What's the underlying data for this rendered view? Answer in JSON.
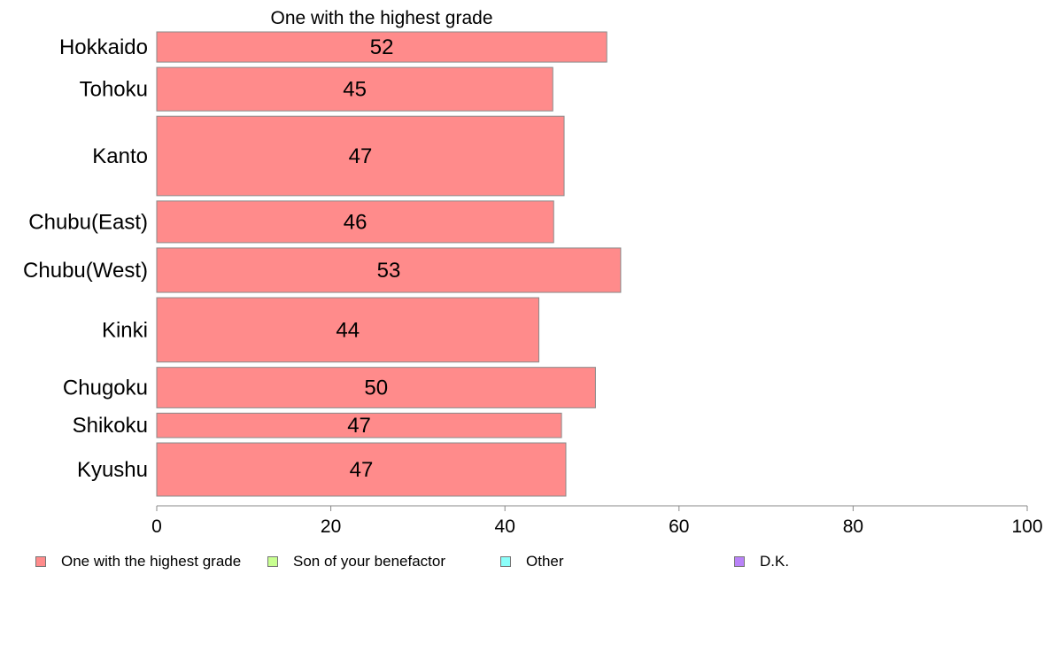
{
  "chart_data": {
    "type": "bar",
    "orientation": "horizontal",
    "title": "One with the highest grade",
    "categories": [
      "Hokkaido",
      "Tohoku",
      "Kanto",
      "Chubu(East)",
      "Chubu(West)",
      "Kinki",
      "Chugoku",
      "Shikoku",
      "Kyushu"
    ],
    "values": [
      51.7,
      45.5,
      46.8,
      45.6,
      53.3,
      43.9,
      50.4,
      46.5,
      47.0
    ],
    "data_labels": [
      "52",
      "45",
      "47",
      "46",
      "53",
      "44",
      "50",
      "47",
      "47"
    ],
    "bar_weights": [
      1.0,
      1.44,
      2.63,
      1.38,
      1.47,
      2.13,
      1.34,
      0.81,
      1.76
    ],
    "xlim": [
      0,
      100
    ],
    "xticks": [
      "0",
      "20",
      "40",
      "60",
      "80",
      "100"
    ],
    "xtick_values": [
      0,
      20,
      40,
      60,
      80,
      100
    ],
    "grid": false,
    "legend_placement": "bottom",
    "bar_color": "#ff8b8b",
    "legend": [
      {
        "label": "One with the highest grade",
        "color": "#ff8b8b"
      },
      {
        "label": "Son of your benefactor",
        "color": "#c8ff90"
      },
      {
        "label": "Other",
        "color": "#8bfffa"
      },
      {
        "label": "D.K.",
        "color": "#b982f8"
      }
    ]
  }
}
